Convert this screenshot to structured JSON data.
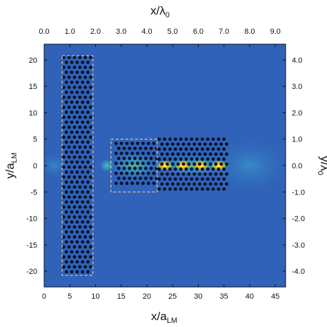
{
  "chart_data": {
    "type": "heatmap",
    "x_bottom": {
      "label": "x/a",
      "label_sub": "LM",
      "range": [
        0,
        47
      ],
      "ticks": [
        "0",
        "5",
        "10",
        "15",
        "20",
        "25",
        "30",
        "35",
        "40",
        "45"
      ],
      "tick_values": [
        0,
        5,
        10,
        15,
        20,
        25,
        30,
        35,
        40,
        45
      ]
    },
    "x_top": {
      "label": "x/λ",
      "label_sub": "0",
      "range": [
        0,
        9.4
      ],
      "ticks": [
        "0.0",
        "1.0",
        "2.0",
        "3.0",
        "4.0",
        "5.0",
        "6.0",
        "7.0",
        "8.0",
        "9.0"
      ],
      "tick_values": [
        0,
        1,
        2,
        3,
        4,
        5,
        6,
        7,
        8,
        9
      ]
    },
    "y_left": {
      "label": "y/a",
      "label_sub": "LM",
      "range": [
        -23,
        23
      ],
      "ticks": [
        "20",
        "15",
        "10",
        "5",
        "0",
        "-5",
        "-10",
        "-15",
        "-20"
      ],
      "tick_values": [
        20,
        15,
        10,
        5,
        0,
        -5,
        -10,
        -15,
        -20
      ]
    },
    "y_right": {
      "label": "y/λ",
      "label_sub": "0",
      "range": [
        -4.6,
        4.6
      ],
      "ticks": [
        "4.0",
        "3.0",
        "2.0",
        "1.0",
        "0.0",
        "-1.0",
        "-2.0",
        "-3.0",
        "-4.0"
      ],
      "tick_values": [
        4,
        3,
        2,
        1,
        0,
        -1,
        -2,
        -3,
        -4
      ]
    },
    "background_color": "#2f62b8",
    "hot_spot_colors": [
      "#f5e642",
      "#ff8a1c",
      "#7bd64a",
      "#35b8d8"
    ],
    "hot_spots_x": [
      23.5,
      27.0,
      30.5,
      34.0
    ],
    "hot_spots_y": 0,
    "dashed_regions": [
      {
        "x": [
          3.5,
          9.5
        ],
        "y": [
          -20.8,
          20.8
        ]
      },
      {
        "x": [
          13.0,
          22.0
        ],
        "y": [
          -5.0,
          5.0
        ]
      }
    ],
    "hole_arrays": [
      {
        "x": [
          3.8,
          9.4
        ],
        "y": [
          -20.5,
          20.5
        ]
      },
      {
        "x": [
          14.0,
          22.0
        ],
        "y": [
          -4.2,
          4.2
        ]
      },
      {
        "x": [
          22.4,
          36.0
        ],
        "y": [
          -5.0,
          5.0
        ]
      }
    ]
  }
}
